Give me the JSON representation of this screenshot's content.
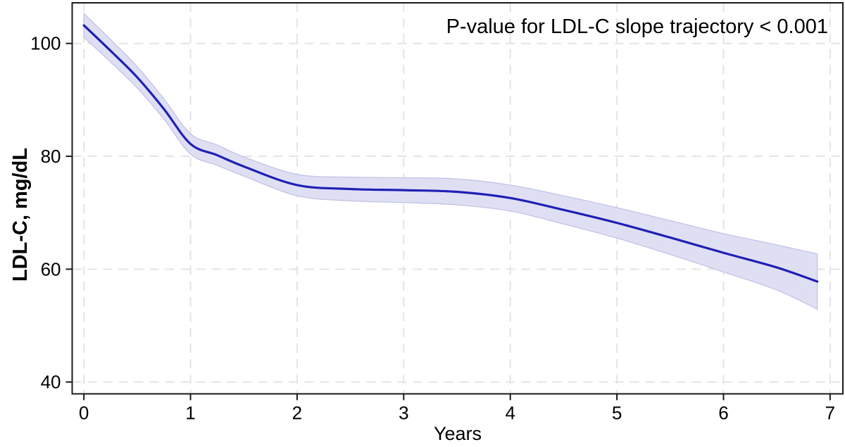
{
  "chart_data": {
    "type": "line",
    "title": "",
    "xlabel": "Years",
    "ylabel": "LDL-C, mg/dL",
    "annotation": "P-value for LDL-C slope trajectory < 0.001",
    "xlim": [
      -0.11,
      7.12
    ],
    "ylim": [
      37.9,
      107.2
    ],
    "xticks": [
      0,
      1,
      2,
      3,
      4,
      5,
      6,
      7
    ],
    "yticks": [
      40,
      60,
      80,
      100
    ],
    "grid": true,
    "legend": "none",
    "series": [
      {
        "name": "LDL-C mean with 95% CI band",
        "columns": [
          "years",
          "mean",
          "ci_lower",
          "ci_upper"
        ],
        "points": [
          [
            0.0,
            103.2,
            101.1,
            105.3
          ],
          [
            0.25,
            98.7,
            96.7,
            100.7
          ],
          [
            0.5,
            94.0,
            92.1,
            95.9
          ],
          [
            0.75,
            88.4,
            86.6,
            90.2
          ],
          [
            1.0,
            82.2,
            80.4,
            84.0
          ],
          [
            1.25,
            80.2,
            78.4,
            82.0
          ],
          [
            1.5,
            78.2,
            76.5,
            79.9
          ],
          [
            2.0,
            74.9,
            73.0,
            76.8
          ],
          [
            2.5,
            74.2,
            72.1,
            76.3
          ],
          [
            3.0,
            74.0,
            71.8,
            76.2
          ],
          [
            3.5,
            73.7,
            71.4,
            76.0
          ],
          [
            4.0,
            72.6,
            70.3,
            74.9
          ],
          [
            4.5,
            70.5,
            68.0,
            73.0
          ],
          [
            5.0,
            68.2,
            65.5,
            70.9
          ],
          [
            5.5,
            65.6,
            62.6,
            68.6
          ],
          [
            6.0,
            62.9,
            59.5,
            66.3
          ],
          [
            6.5,
            60.3,
            56.3,
            64.3
          ],
          [
            6.88,
            57.8,
            52.9,
            62.7
          ]
        ]
      }
    ],
    "colors": {
      "line": "#2020b4",
      "band_fill": "#dfdff4",
      "band_edge": "#c3c3e6",
      "grid": "#e4e4e4",
      "frame": "#1a1a1a",
      "text": "#000000",
      "background": "#ffffff"
    }
  }
}
